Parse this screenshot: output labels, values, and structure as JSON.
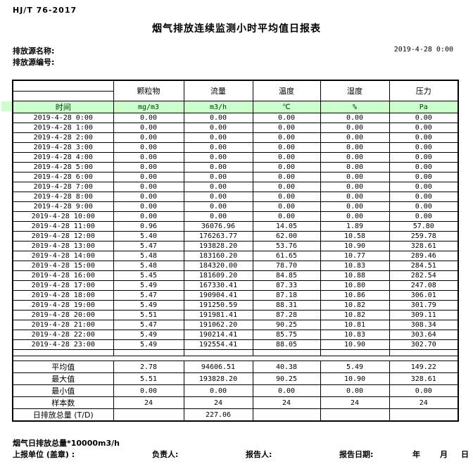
{
  "header": {
    "standard_code": "HJ/T  76-2017",
    "title": "烟气排放连续监测小时平均值日报表",
    "source_name_label": "排放源名称:",
    "source_code_label": "排放源编号:",
    "datetime": "2019-4-28  0:00"
  },
  "table": {
    "time_header": "时间",
    "columns": [
      {
        "label": "颗粒物",
        "unit": "mg/m3"
      },
      {
        "label": "流量",
        "unit": "m3/h"
      },
      {
        "label": "温度",
        "unit": "℃"
      },
      {
        "label": "湿度",
        "unit": "%"
      },
      {
        "label": "压力",
        "unit": "Pa"
      }
    ],
    "rows": [
      {
        "time": "2019-4-28 0:00",
        "values": [
          "0.00",
          "0.00",
          "0.00",
          "0.00",
          "0.00"
        ]
      },
      {
        "time": "2019-4-28 1:00",
        "values": [
          "0.00",
          "0.00",
          "0.00",
          "0.00",
          "0.00"
        ]
      },
      {
        "time": "2019-4-28 2:00",
        "values": [
          "0.00",
          "0.00",
          "0.00",
          "0.00",
          "0.00"
        ]
      },
      {
        "time": "2019-4-28 3:00",
        "values": [
          "0.00",
          "0.00",
          "0.00",
          "0.00",
          "0.00"
        ]
      },
      {
        "time": "2019-4-28 4:00",
        "values": [
          "0.00",
          "0.00",
          "0.00",
          "0.00",
          "0.00"
        ]
      },
      {
        "time": "2019-4-28 5:00",
        "values": [
          "0.00",
          "0.00",
          "0.00",
          "0.00",
          "0.00"
        ]
      },
      {
        "time": "2019-4-28 6:00",
        "values": [
          "0.00",
          "0.00",
          "0.00",
          "0.00",
          "0.00"
        ]
      },
      {
        "time": "2019-4-28 7:00",
        "values": [
          "0.00",
          "0.00",
          "0.00",
          "0.00",
          "0.00"
        ]
      },
      {
        "time": "2019-4-28 8:00",
        "values": [
          "0.00",
          "0.00",
          "0.00",
          "0.00",
          "0.00"
        ]
      },
      {
        "time": "2019-4-28 9:00",
        "values": [
          "0.00",
          "0.00",
          "0.00",
          "0.00",
          "0.00"
        ]
      },
      {
        "time": "2019-4-28 10:00",
        "values": [
          "0.00",
          "0.00",
          "0.00",
          "0.00",
          "0.00"
        ]
      },
      {
        "time": "2019-4-28 11:00",
        "values": [
          "0.96",
          "36076.96",
          "14.05",
          "1.89",
          "57.80"
        ]
      },
      {
        "time": "2019-4-28 12:00",
        "values": [
          "5.40",
          "176263.77",
          "62.00",
          "10.58",
          "259.78"
        ]
      },
      {
        "time": "2019-4-28 13:00",
        "values": [
          "5.47",
          "193828.20",
          "53.76",
          "10.90",
          "328.61"
        ]
      },
      {
        "time": "2019-4-28 14:00",
        "values": [
          "5.48",
          "183160.20",
          "61.65",
          "10.77",
          "289.46"
        ]
      },
      {
        "time": "2019-4-28 15:00",
        "values": [
          "5.48",
          "184320.00",
          "78.70",
          "10.83",
          "284.51"
        ]
      },
      {
        "time": "2019-4-28 16:00",
        "values": [
          "5.45",
          "181609.20",
          "84.85",
          "10.88",
          "282.54"
        ]
      },
      {
        "time": "2019-4-28 17:00",
        "values": [
          "5.49",
          "167330.41",
          "87.33",
          "10.80",
          "247.08"
        ]
      },
      {
        "time": "2019-4-28 18:00",
        "values": [
          "5.47",
          "190904.41",
          "87.18",
          "10.86",
          "306.01"
        ]
      },
      {
        "time": "2019-4-28 19:00",
        "values": [
          "5.49",
          "191250.59",
          "88.31",
          "10.82",
          "301.79"
        ]
      },
      {
        "time": "2019-4-28 20:00",
        "values": [
          "5.51",
          "191981.41",
          "87.28",
          "10.82",
          "309.11"
        ]
      },
      {
        "time": "2019-4-28 21:00",
        "values": [
          "5.47",
          "191062.20",
          "90.25",
          "10.81",
          "308.34"
        ]
      },
      {
        "time": "2019-4-28 22:00",
        "values": [
          "5.49",
          "190214.41",
          "85.75",
          "10.83",
          "303.64"
        ]
      },
      {
        "time": "2019-4-28 23:00",
        "values": [
          "5.49",
          "192554.41",
          "88.05",
          "10.90",
          "302.70"
        ]
      }
    ],
    "summary": [
      {
        "label": "平均值",
        "values": [
          "2.78",
          "94606.51",
          "40.38",
          "5.49",
          "149.22"
        ]
      },
      {
        "label": "最大值",
        "values": [
          "5.51",
          "193828.20",
          "90.25",
          "10.90",
          "328.61"
        ]
      },
      {
        "label": "最小值",
        "values": [
          "0.00",
          "0.00",
          "0.00",
          "0.00",
          "0.00"
        ]
      },
      {
        "label": "样本数",
        "values": [
          "24",
          "24",
          "24",
          "24",
          "24"
        ]
      },
      {
        "label": "日排放总量 (T/D)",
        "values": [
          "",
          "227.06",
          "",
          "",
          ""
        ]
      }
    ]
  },
  "footer": {
    "total_note": "烟气日排放总量*10000m3/h",
    "report_unit_label": "上报单位 (盖章) :",
    "responsible_label": "负责人:",
    "reporter_label": "报告人:",
    "report_date_label": "报告日期:",
    "year_label": "年",
    "month_label": "月",
    "day_label": "日"
  }
}
